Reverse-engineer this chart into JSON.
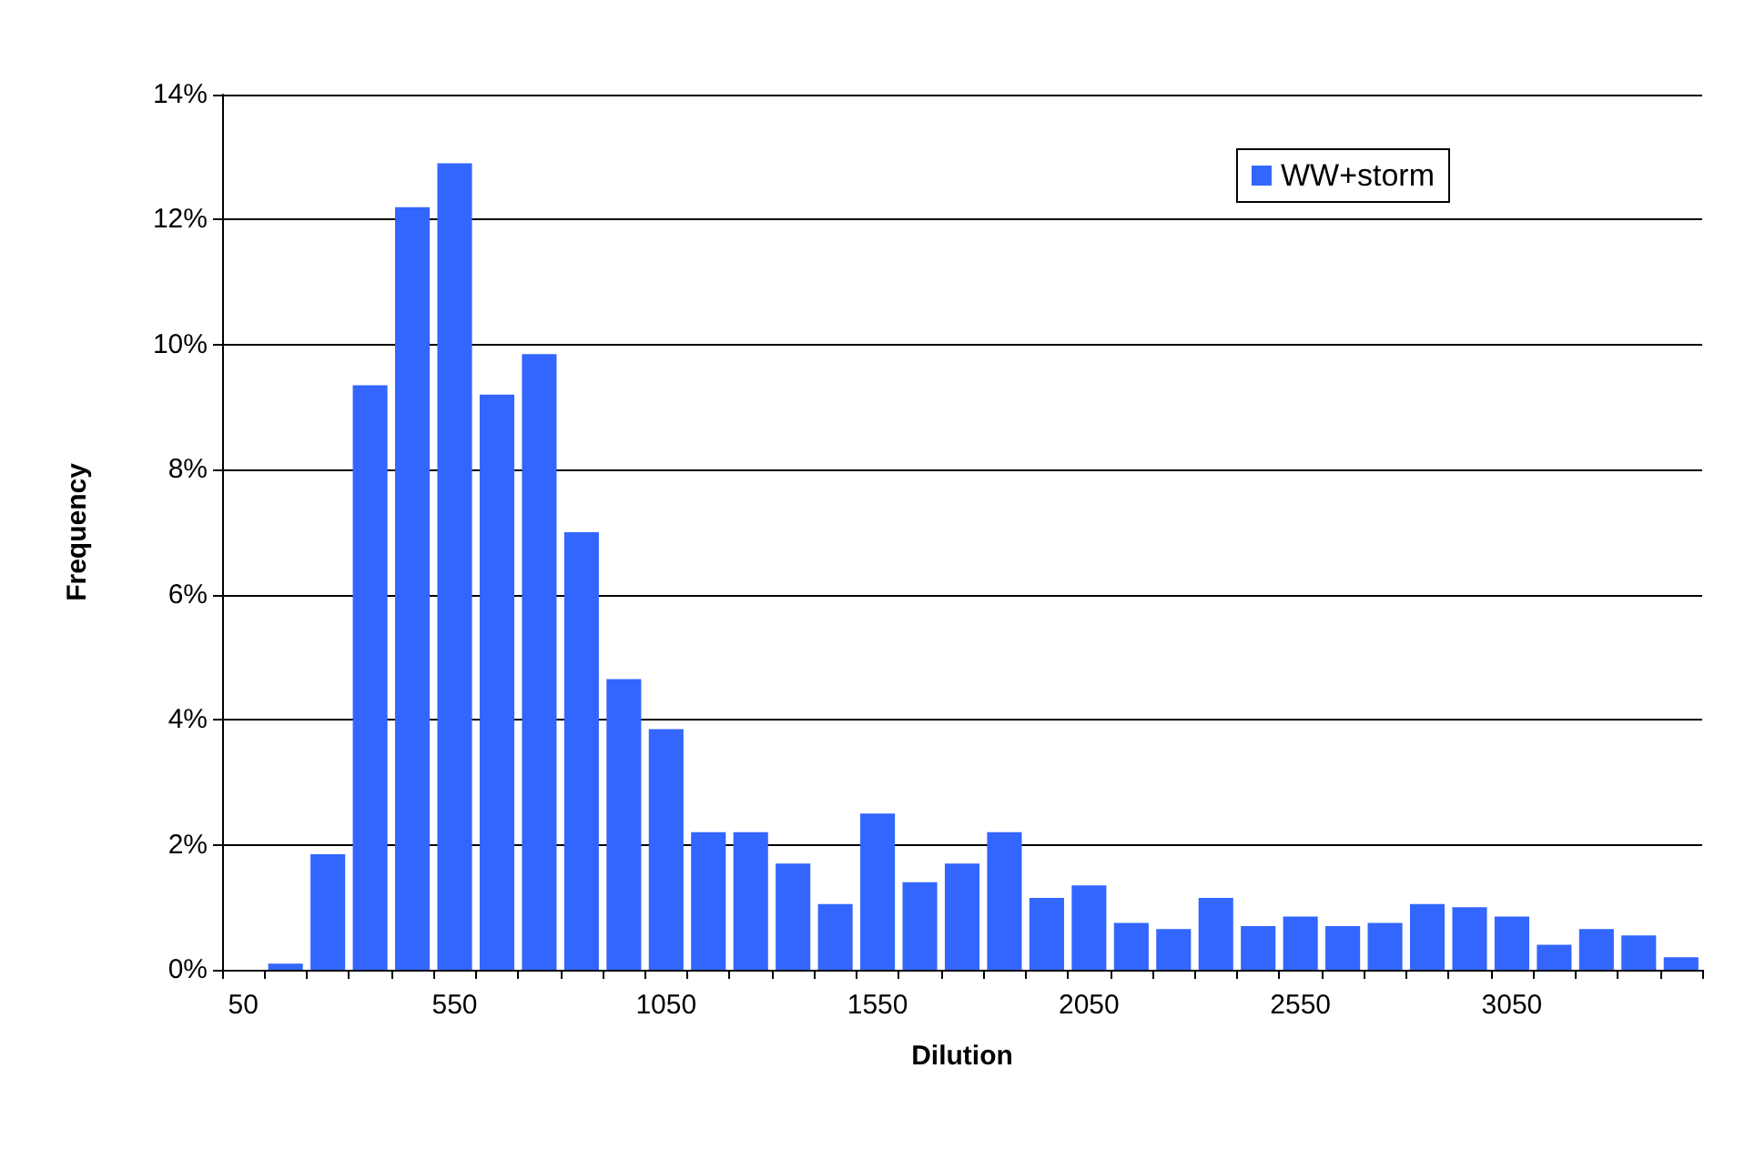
{
  "chart_data": {
    "type": "bar",
    "xlabel": "Dilution",
    "ylabel": "Frequency",
    "categories": [
      "50",
      null,
      null,
      null,
      null,
      "550",
      null,
      null,
      null,
      null,
      "1050",
      null,
      null,
      null,
      null,
      "1550",
      null,
      null,
      null,
      null,
      "2050",
      null,
      null,
      null,
      null,
      "2550",
      null,
      null,
      null,
      null,
      "3050",
      null,
      null,
      null,
      null
    ],
    "series": [
      {
        "name": "WW+storm",
        "color": "#3366ff",
        "values": [
          0,
          0.1,
          1.85,
          9.35,
          12.2,
          12.9,
          9.2,
          9.85,
          7.0,
          4.65,
          3.85,
          2.2,
          2.2,
          1.7,
          1.05,
          2.5,
          1.4,
          1.7,
          2.2,
          1.15,
          1.35,
          0.75,
          0.65,
          1.15,
          0.7,
          0.85,
          0.7,
          0.75,
          1.05,
          1.0,
          0.85,
          0.4,
          0.65,
          0.55,
          0.2
        ]
      }
    ],
    "ylim": [
      0,
      14
    ],
    "yticks": [
      {
        "value": 0,
        "label": "0%"
      },
      {
        "value": 2,
        "label": "2%"
      },
      {
        "value": 4,
        "label": "4%"
      },
      {
        "value": 6,
        "label": "6%"
      },
      {
        "value": 8,
        "label": "8%"
      },
      {
        "value": 10,
        "label": "10%"
      },
      {
        "value": 12,
        "label": "12%"
      },
      {
        "value": 14,
        "label": "14%"
      }
    ],
    "grid": "y",
    "legend": "top right"
  }
}
